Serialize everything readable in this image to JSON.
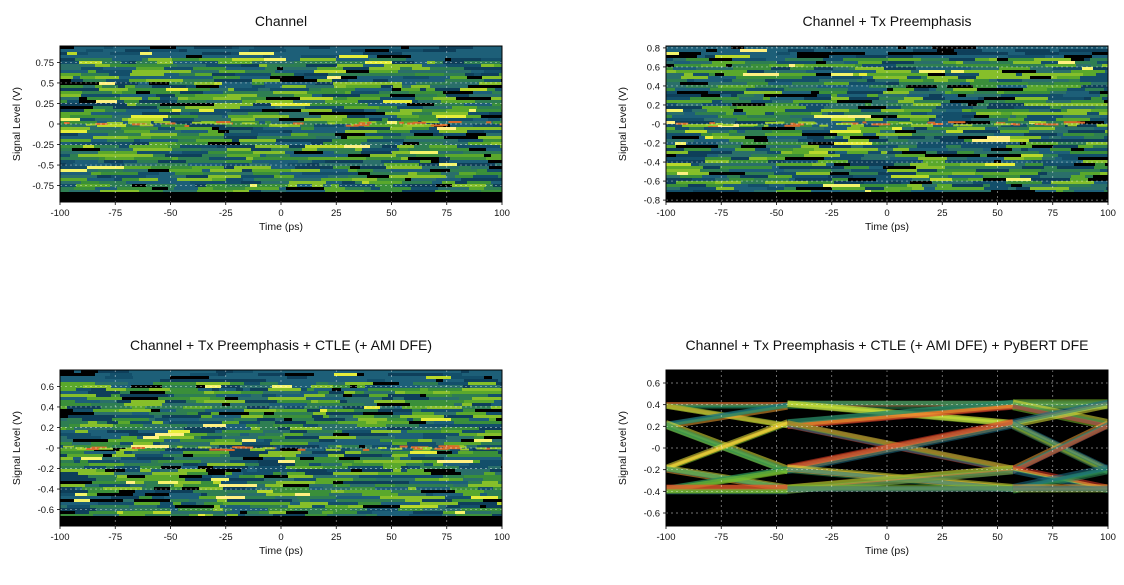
{
  "chart_data": [
    {
      "type": "heatmap",
      "title": "Channel",
      "xlabel": "Time (ps)",
      "ylabel": "Signal Level (V)",
      "xlim": [
        -100,
        100
      ],
      "ylim": [
        -0.95,
        0.95
      ],
      "xticks": [
        -100,
        -75,
        -50,
        -25,
        0,
        25,
        50,
        75,
        100
      ],
      "xtick_labels": [
        "-100",
        "-75",
        "-50",
        "-25",
        "0",
        "25",
        "50",
        "75",
        "100"
      ],
      "yticks": [
        0.75,
        0.5,
        0.25,
        0,
        -0.25,
        -0.5,
        -0.75
      ],
      "ytick_labels": [
        "0.75",
        "0.5",
        "0.25",
        "0",
        "-0.25",
        "-0.5",
        "-0.75"
      ],
      "grid": true,
      "eye": "closed",
      "pattern_seed": 11
    },
    {
      "type": "heatmap",
      "title": "Channel + Tx Preemphasis",
      "xlabel": "Time (ps)",
      "ylabel": "Signal Level (V)",
      "xlim": [
        -100,
        100
      ],
      "ylim": [
        -0.82,
        0.82
      ],
      "xticks": [
        -100,
        -75,
        -50,
        -25,
        0,
        25,
        50,
        75,
        100
      ],
      "xtick_labels": [
        "-100",
        "-75",
        "-50",
        "-25",
        "0",
        "25",
        "50",
        "75",
        "100"
      ],
      "yticks": [
        0.8,
        0.6,
        0.4,
        0.2,
        0,
        -0.2,
        -0.4,
        -0.6,
        -0.8
      ],
      "ytick_labels": [
        "0.8",
        "0.6",
        "0.4",
        "0.2",
        "-0",
        "-0.2",
        "-0.4",
        "-0.6",
        "-0.8"
      ],
      "grid": true,
      "eye": "closed",
      "pattern_seed": 23
    },
    {
      "type": "heatmap",
      "title": "Channel + Tx Preemphasis + CTLE (+ AMI DFE)",
      "xlabel": "Time (ps)",
      "ylabel": "Signal Level (V)",
      "xlim": [
        -100,
        100
      ],
      "ylim": [
        -0.76,
        0.76
      ],
      "xticks": [
        -100,
        -75,
        -50,
        -25,
        0,
        25,
        50,
        75,
        100
      ],
      "xtick_labels": [
        "-100",
        "-75",
        "-50",
        "-25",
        "0",
        "25",
        "50",
        "75",
        "100"
      ],
      "yticks": [
        0.6,
        0.4,
        0.2,
        0,
        -0.2,
        -0.4,
        -0.6
      ],
      "ytick_labels": [
        "0.6",
        "0.4",
        "0.2",
        "-0",
        "-0.2",
        "-0.4",
        "-0.6"
      ],
      "grid": true,
      "eye": "closed",
      "pattern_seed": 37
    },
    {
      "type": "heatmap",
      "title": "Channel + Tx Preemphasis + CTLE (+ AMI DFE) + PyBERT DFE",
      "xlabel": "Time (ps)",
      "ylabel": "Signal Level (V)",
      "xlim": [
        -100,
        100
      ],
      "ylim": [
        -0.72,
        0.72
      ],
      "xticks": [
        -100,
        -75,
        -50,
        -25,
        0,
        25,
        50,
        75,
        100
      ],
      "xtick_labels": [
        "-100",
        "-75",
        "-50",
        "-25",
        "0",
        "25",
        "50",
        "75",
        "100"
      ],
      "yticks": [
        0.6,
        0.4,
        0.2,
        0,
        -0.2,
        -0.4,
        -0.6
      ],
      "ytick_labels": [
        "0.6",
        "0.4",
        "0.2",
        "-0",
        "-0.2",
        "-0.4",
        "-0.6"
      ],
      "grid": true,
      "eye": "open",
      "eye_levels": [
        0.4,
        0.22,
        -0.2,
        -0.38
      ],
      "bit_boundaries_ps": [
        -45,
        57
      ],
      "pattern_seed": 53
    }
  ]
}
